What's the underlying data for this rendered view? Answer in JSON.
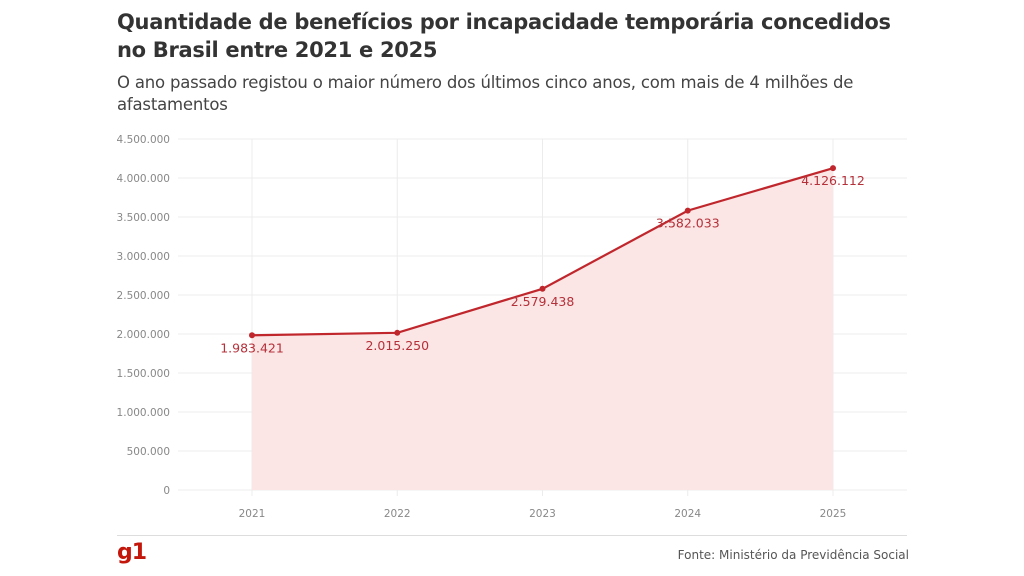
{
  "header": {
    "title": "Quantidade de benefícios por incapacidade temporária concedidos no Brasil entre 2021 e 2025",
    "subtitle": "O ano passado registou o maior número dos últimos cinco anos, com mais de 4 milhões de afastamentos"
  },
  "footer": {
    "logo": "g1",
    "source": "Fonte: Ministério da Previdência Social"
  },
  "colors": {
    "line": "#c0272d",
    "area": "#fbe5e5",
    "label": "#b5313a",
    "logo": "#c4170c"
  },
  "chart_data": {
    "type": "area",
    "title": "Quantidade de benefícios por incapacidade temporária concedidos no Brasil entre 2021 e 2025",
    "subtitle": "O ano passado registou o maior número dos últimos cinco anos, com mais de 4 milhões de afastamentos",
    "xlabel": "",
    "ylabel": "",
    "categories": [
      "2021",
      "2022",
      "2023",
      "2024",
      "2025"
    ],
    "values": [
      1983421,
      2015250,
      2579438,
      3582033,
      4126112
    ],
    "data_labels": [
      "1.983.421",
      "2.015.250",
      "2.579.438",
      "3:582.033",
      "4.126.112"
    ],
    "ylim": [
      0,
      4500000
    ],
    "yticks": [
      0,
      500000,
      1000000,
      1500000,
      2000000,
      2500000,
      3000000,
      3500000,
      4000000,
      4500000
    ],
    "ytick_labels": [
      "0",
      "500.000",
      "1.000.000",
      "1.500.000",
      "2.000.000",
      "2.500.000",
      "3.000.000",
      "3.500.000",
      "4.000.000",
      "4.500.000"
    ],
    "grid": true,
    "legend": "none",
    "source": "Fonte: Ministério da Previdência Social"
  }
}
